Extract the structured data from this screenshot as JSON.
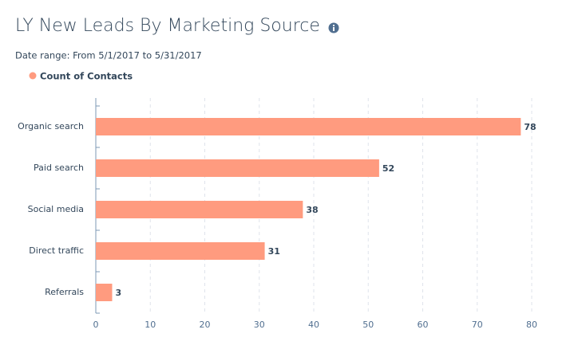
{
  "chart_data": {
    "type": "bar",
    "orientation": "horizontal",
    "title": "LY New Leads By Marketing Source",
    "subtitle": "Date range: From 5/1/2017 to 5/31/2017",
    "categories": [
      "Organic search",
      "Paid search",
      "Social media",
      "Direct traffic",
      "Referrals"
    ],
    "series": [
      {
        "name": "Count of Contacts",
        "color": "#ff9b7f",
        "values": [
          78,
          52,
          38,
          31,
          3
        ]
      }
    ],
    "xlim": [
      0,
      80
    ],
    "xticks": [
      0,
      10,
      20,
      30,
      40,
      50,
      60,
      70,
      80
    ],
    "grid": true
  }
}
